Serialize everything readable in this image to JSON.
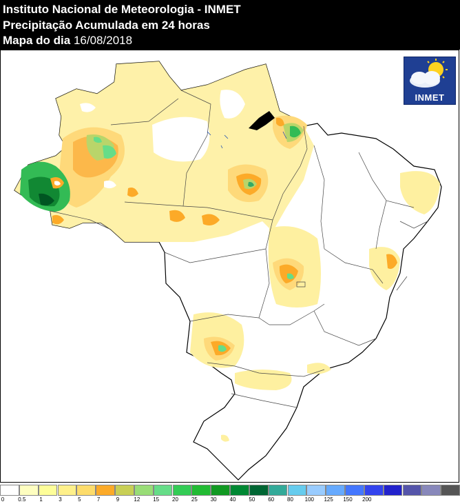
{
  "header": {
    "line1": "Instituto Nacional de Meteorologia - INMET",
    "line2": "Precipitação Acumulada em 24 horas",
    "line3_prefix": "Mapa do dia",
    "line3_date": "16/08/2018"
  },
  "logo": {
    "text": "INMET",
    "icon": "sun-cloud-icon"
  },
  "legend": {
    "colors": [
      "#ffffff",
      "#fefec0",
      "#fefe99",
      "#fef08a",
      "#fddc6b",
      "#fcaa28",
      "#c8cf55",
      "#99dd77",
      "#66dd88",
      "#33cc55",
      "#22bb33",
      "#119922",
      "#008833",
      "#006633",
      "#33aa99",
      "#66ccee",
      "#99ccff",
      "#66aaff",
      "#4477ff",
      "#3344ee",
      "#2222cc",
      "#5555aa",
      "#8888bb",
      "#555555"
    ],
    "labels": [
      "0",
      "0.5",
      "1",
      "3",
      "5",
      "7",
      "9",
      "12",
      "15",
      "20",
      "25",
      "30",
      "40",
      "50",
      "60",
      "80",
      "100",
      "125",
      "150",
      "200"
    ]
  }
}
